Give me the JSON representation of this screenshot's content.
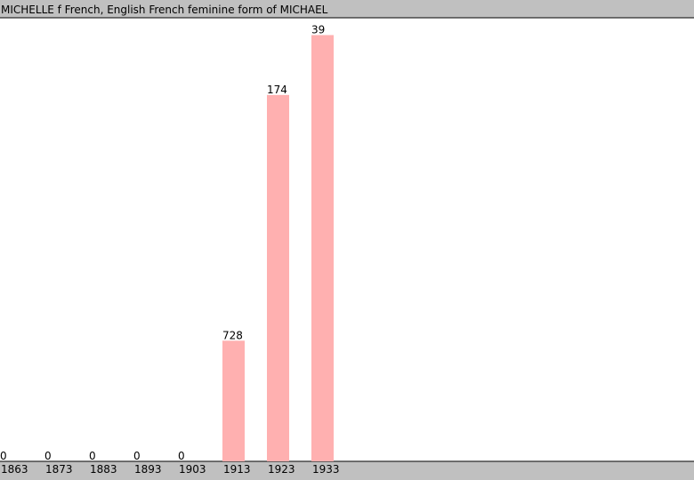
{
  "chart_data": {
    "type": "bar",
    "title": "MICHELLE f French, English French feminine form of MICHAEL",
    "categories": [
      "1863",
      "1873",
      "1883",
      "1893",
      "1903",
      "1913",
      "1923",
      "1933"
    ],
    "values": [
      0,
      0,
      0,
      0,
      0,
      728,
      174,
      39
    ],
    "color": "#ffb0b0",
    "ylim": [
      1000,
      0
    ]
  }
}
